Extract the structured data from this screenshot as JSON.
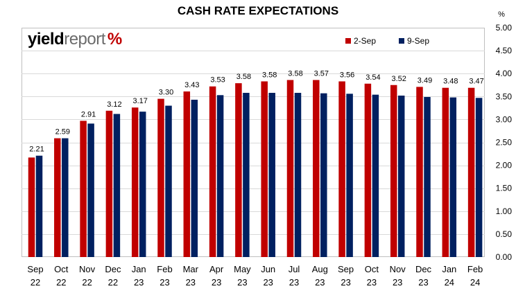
{
  "logo": {
    "part1": "yield",
    "part2": "report",
    "part3": "%"
  },
  "colors": {
    "series1": "#c00000",
    "series2": "#002060",
    "grid": "#d9d9d9",
    "frame": "#bfbfbf"
  },
  "chart_data": {
    "type": "bar",
    "title": "CASH RATE EXPECTATIONS",
    "xlabel": "",
    "ylabel": "%",
    "ylim": [
      0,
      5
    ],
    "yticks": [
      "0.00",
      "0.50",
      "1.00",
      "1.50",
      "2.00",
      "2.50",
      "3.00",
      "3.50",
      "4.00",
      "4.50",
      "5.00"
    ],
    "grid": true,
    "legend_position": "top",
    "categories": [
      [
        "Sep",
        "22"
      ],
      [
        "Oct",
        "22"
      ],
      [
        "Nov",
        "22"
      ],
      [
        "Dec",
        "22"
      ],
      [
        "Jan",
        "23"
      ],
      [
        "Feb",
        "23"
      ],
      [
        "Mar",
        "23"
      ],
      [
        "Apr",
        "23"
      ],
      [
        "May",
        "23"
      ],
      [
        "Jun",
        "23"
      ],
      [
        "Jul",
        "23"
      ],
      [
        "Aug",
        "23"
      ],
      [
        "Sep",
        "23"
      ],
      [
        "Oct",
        "23"
      ],
      [
        "Nov",
        "23"
      ],
      [
        "Dec",
        "23"
      ],
      [
        "Jan",
        "24"
      ],
      [
        "Feb",
        "24"
      ]
    ],
    "series": [
      {
        "name": "2-Sep",
        "color": "#c00000",
        "values": [
          2.17,
          2.59,
          2.97,
          3.19,
          3.26,
          3.45,
          3.61,
          3.72,
          3.79,
          3.83,
          3.86,
          3.86,
          3.83,
          3.78,
          3.75,
          3.71,
          3.69,
          3.69
        ]
      },
      {
        "name": "9-Sep",
        "color": "#002060",
        "values": [
          2.21,
          2.59,
          2.91,
          3.12,
          3.17,
          3.3,
          3.43,
          3.53,
          3.58,
          3.58,
          3.58,
          3.57,
          3.56,
          3.54,
          3.52,
          3.49,
          3.48,
          3.47
        ],
        "labels": [
          "2.21",
          "2.59",
          "2.91",
          "3.12",
          "3.17",
          "3.30",
          "3.43",
          "3.53",
          "3.58",
          "3.58",
          "3.58",
          "3.57",
          "3.56",
          "3.54",
          "3.52",
          "3.49",
          "3.48",
          "3.47"
        ]
      }
    ]
  }
}
